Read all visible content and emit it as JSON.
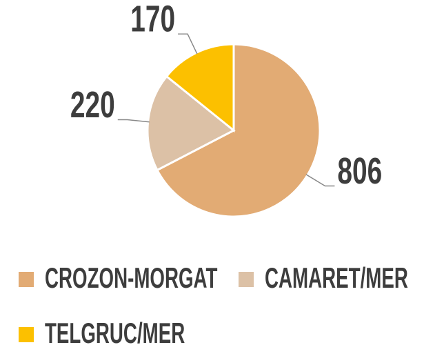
{
  "chart_data": {
    "type": "pie",
    "categories": [
      "CROZON-MORGAT",
      "CAMARET/MER",
      "TELGRUC/MER"
    ],
    "values": [
      806,
      220,
      170
    ],
    "colors": [
      "#e2ab74",
      "#dcc1a6",
      "#fcc000"
    ]
  }
}
